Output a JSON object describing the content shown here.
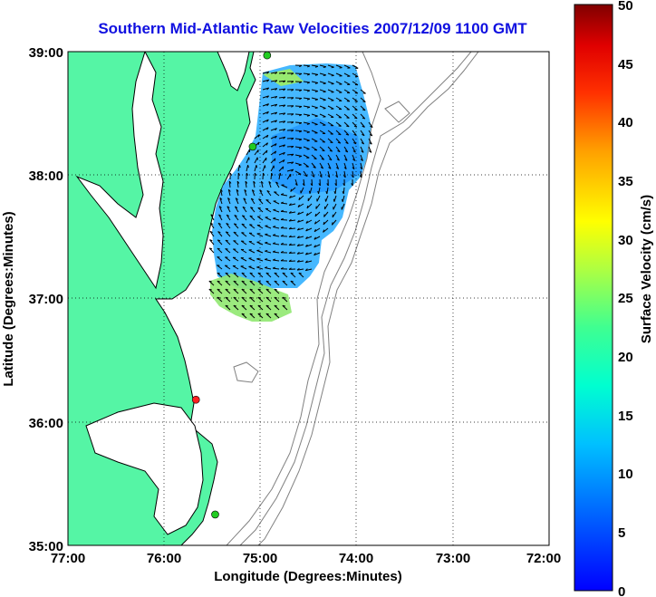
{
  "title": "Southern Mid-Atlantic Raw Velocities 2007/12/09 1100 GMT",
  "map": {
    "xlabel": "Longitude (Degrees:Minutes)",
    "ylabel": "Latitude (Degrees:Minutes)",
    "x_ticks": [
      "77:00",
      "76:00",
      "75:00",
      "74:00",
      "73:00",
      "72:00"
    ],
    "y_ticks": [
      "39:00",
      "38:00",
      "37:00",
      "36:00",
      "35:00"
    ],
    "lon_range": [
      -77,
      -72
    ],
    "lat_range": [
      35,
      39
    ],
    "land_color": "#55f5a5",
    "coast_color": "#000000",
    "bathymetry_color": "#808080",
    "grid": true,
    "grid_style": "dotted"
  },
  "colorbar": {
    "label": "Surface Velocity (cm/s)",
    "ticks": [
      "50",
      "45",
      "40",
      "35",
      "30",
      "25",
      "20",
      "15",
      "10",
      "5",
      "0"
    ],
    "range": [
      0,
      50
    ],
    "colormap": "jet"
  },
  "stations": [
    {
      "color": "#22cc22",
      "lon": -74.93,
      "lat": 38.97
    },
    {
      "color": "#22cc22",
      "lon": -75.08,
      "lat": 38.23
    },
    {
      "color": "#ff2020",
      "lon": -75.67,
      "lat": 36.18
    },
    {
      "color": "#22cc22",
      "lon": -75.47,
      "lat": 35.25
    }
  ]
}
